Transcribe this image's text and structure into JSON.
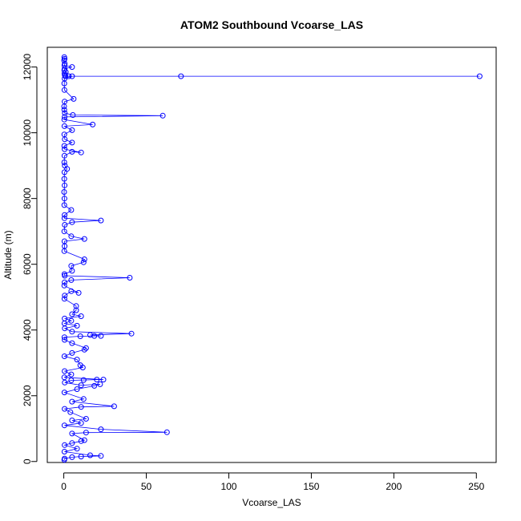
{
  "chart_data": {
    "type": "line",
    "title": "ATOM2 Southbound Vcoarse_LAS",
    "xlabel": "Vcoarse_LAS",
    "ylabel": "Altitude (m)",
    "xlim": [
      -10,
      262
    ],
    "ylim": [
      -30,
      12600
    ],
    "xticks": [
      0,
      50,
      100,
      150,
      200,
      250
    ],
    "yticks": [
      0,
      2000,
      4000,
      6000,
      8000,
      10000,
      12000
    ],
    "line_style": "line-with-open-circles",
    "series": [
      {
        "color": "#0000ff",
        "points": [
          [
            0.3,
            12300
          ],
          [
            0.5,
            12250
          ],
          [
            0.2,
            12200
          ],
          [
            0.6,
            12100
          ],
          [
            0.4,
            12050
          ],
          [
            5,
            12000
          ],
          [
            0.5,
            11950
          ],
          [
            0.3,
            11900
          ],
          [
            1.2,
            11850
          ],
          [
            0.4,
            11800
          ],
          [
            0.6,
            11750
          ],
          [
            1,
            11720
          ],
          [
            71,
            11720
          ],
          [
            252,
            11720
          ],
          [
            3,
            11720
          ],
          [
            5,
            11720
          ],
          [
            0.5,
            11650
          ],
          [
            0.3,
            11500
          ],
          [
            0.4,
            11300
          ],
          [
            6,
            11030
          ],
          [
            0.5,
            10950
          ],
          [
            0.2,
            10800
          ],
          [
            0.3,
            10700
          ],
          [
            0.6,
            10600
          ],
          [
            5.5,
            10540
          ],
          [
            60,
            10520
          ],
          [
            0.5,
            10480
          ],
          [
            0.3,
            10400
          ],
          [
            17.5,
            10250
          ],
          [
            0.4,
            10200
          ],
          [
            5,
            10080
          ],
          [
            0.3,
            9950
          ],
          [
            0.6,
            9800
          ],
          [
            5,
            9700
          ],
          [
            0.3,
            9600
          ],
          [
            0.5,
            9500
          ],
          [
            10.5,
            9400
          ],
          [
            5,
            9420
          ],
          [
            0.4,
            9300
          ],
          [
            0.3,
            9100
          ],
          [
            0.6,
            9000
          ],
          [
            2,
            8900
          ],
          [
            0.4,
            8800
          ],
          [
            0.3,
            8600
          ],
          [
            0.5,
            8400
          ],
          [
            0.2,
            8200
          ],
          [
            0.4,
            8000
          ],
          [
            0.3,
            7800
          ],
          [
            4.5,
            7650
          ],
          [
            0.5,
            7500
          ],
          [
            0.4,
            7400
          ],
          [
            22.5,
            7330
          ],
          [
            5,
            7280
          ],
          [
            0.6,
            7200
          ],
          [
            0.3,
            7000
          ],
          [
            4.5,
            6850
          ],
          [
            12.5,
            6770
          ],
          [
            0.4,
            6700
          ],
          [
            0.5,
            6550
          ],
          [
            0.3,
            6400
          ],
          [
            12.5,
            6150
          ],
          [
            12,
            6060
          ],
          [
            4.5,
            5950
          ],
          [
            5,
            5800
          ],
          [
            0.4,
            5700
          ],
          [
            0.6,
            5650
          ],
          [
            40,
            5590
          ],
          [
            4.5,
            5520
          ],
          [
            0.5,
            5450
          ],
          [
            0.3,
            5350
          ],
          [
            9,
            5130
          ],
          [
            4.5,
            5180
          ],
          [
            0.6,
            5050
          ],
          [
            0.4,
            4950
          ],
          [
            7.5,
            4730
          ],
          [
            7.5,
            4600
          ],
          [
            5,
            4480
          ],
          [
            10.5,
            4420
          ],
          [
            0.5,
            4350
          ],
          [
            4.5,
            4280
          ],
          [
            0.4,
            4200
          ],
          [
            8,
            4130
          ],
          [
            0.6,
            4050
          ],
          [
            5,
            3950
          ],
          [
            41,
            3890
          ],
          [
            16,
            3850
          ],
          [
            22.5,
            3820
          ],
          [
            18.5,
            3820
          ],
          [
            10,
            3810
          ],
          [
            0.4,
            3780
          ],
          [
            0.5,
            3700
          ],
          [
            5,
            3600
          ],
          [
            13.5,
            3450
          ],
          [
            12.5,
            3400
          ],
          [
            5,
            3300
          ],
          [
            0.4,
            3200
          ],
          [
            8,
            3100
          ],
          [
            10,
            2930
          ],
          [
            11.5,
            2860
          ],
          [
            0.5,
            2750
          ],
          [
            4.5,
            2650
          ],
          [
            0.3,
            2560
          ],
          [
            24,
            2490
          ],
          [
            20,
            2490
          ],
          [
            12,
            2480
          ],
          [
            4.5,
            2470
          ],
          [
            0.6,
            2400
          ],
          [
            10.5,
            2320
          ],
          [
            22,
            2350
          ],
          [
            18.5,
            2300
          ],
          [
            8,
            2200
          ],
          [
            0.4,
            2100
          ],
          [
            12,
            1900
          ],
          [
            5,
            1820
          ],
          [
            30.5,
            1680
          ],
          [
            10.5,
            1660
          ],
          [
            0.5,
            1600
          ],
          [
            4,
            1500
          ],
          [
            13.5,
            1300
          ],
          [
            5,
            1250
          ],
          [
            10.5,
            1170
          ],
          [
            0.4,
            1100
          ],
          [
            22.5,
            980
          ],
          [
            62.5,
            890
          ],
          [
            13.5,
            880
          ],
          [
            5,
            850
          ],
          [
            12.5,
            650
          ],
          [
            10.5,
            620
          ],
          [
            5,
            560
          ],
          [
            0.5,
            500
          ],
          [
            8,
            390
          ],
          [
            0.4,
            300
          ],
          [
            16,
            190
          ],
          [
            22.5,
            170
          ],
          [
            10.5,
            150
          ],
          [
            5,
            130
          ],
          [
            0.5,
            90
          ],
          [
            0.3,
            50
          ]
        ]
      }
    ]
  }
}
